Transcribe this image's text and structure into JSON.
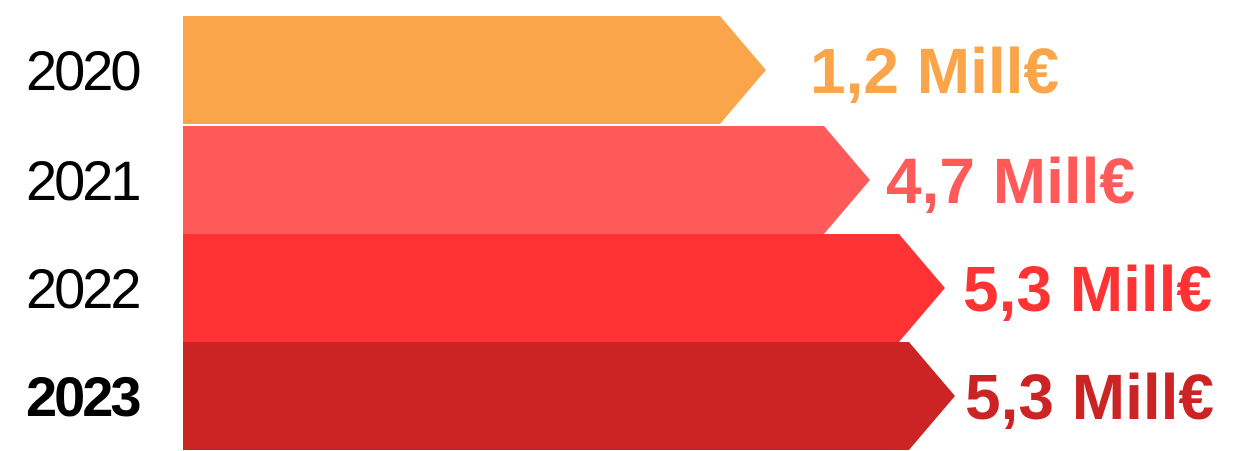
{
  "chart_data": {
    "type": "bar",
    "orientation": "horizontal",
    "categories": [
      "2020",
      "2021",
      "2022",
      "2023"
    ],
    "values": [
      1.2,
      4.7,
      5.3,
      5.3
    ],
    "value_labels": [
      "1,2 Mill€",
      "4,7 Mill€",
      "5,3 Mill€",
      "5,3 Mill€"
    ],
    "colors": [
      "#FAA54A",
      "#FF5A5A",
      "#FF3333",
      "#CC2424"
    ],
    "bold_category": "2023",
    "bar_shape": "arrow",
    "grid": false,
    "legend": "none"
  }
}
